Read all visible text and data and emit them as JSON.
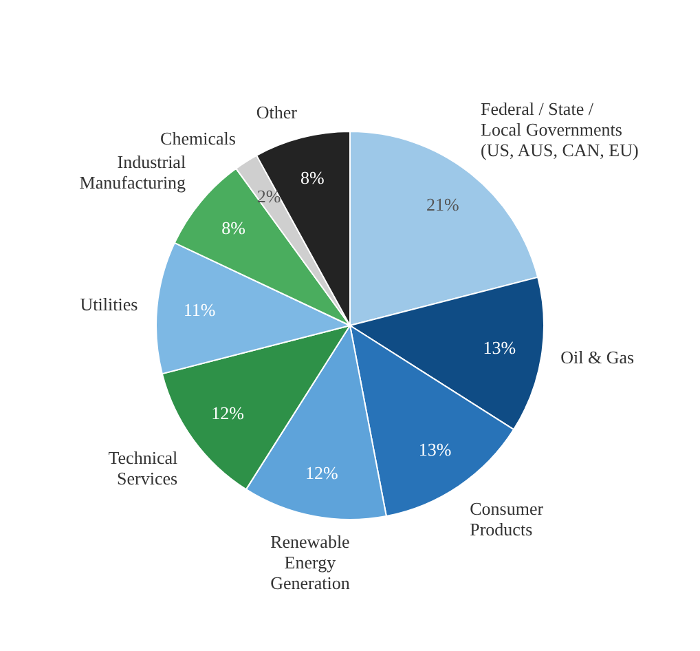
{
  "chart_data": {
    "type": "pie",
    "categories": [
      "Federal / State /\nLocal Governments\n(US, AUS, CAN, EU)",
      "Oil & Gas",
      "Consumer\nProducts",
      "Renewable\nEnergy\nGeneration",
      "Technical\nServices",
      "Utilities",
      "Industrial\nManufacturing",
      "Chemicals",
      "Other"
    ],
    "values": [
      21,
      13,
      13,
      12,
      12,
      11,
      8,
      2,
      8
    ],
    "value_labels": [
      "21%",
      "13%",
      "13%",
      "12%",
      "12%",
      "11%",
      "8%",
      "2%",
      "8%"
    ],
    "colors": [
      "#9dc8e8",
      "#0f4c85",
      "#2873b8",
      "#5ea3da",
      "#2e9148",
      "#7db8e4",
      "#4aad5e",
      "#cfcfcf",
      "#232323"
    ],
    "legend": false
  }
}
